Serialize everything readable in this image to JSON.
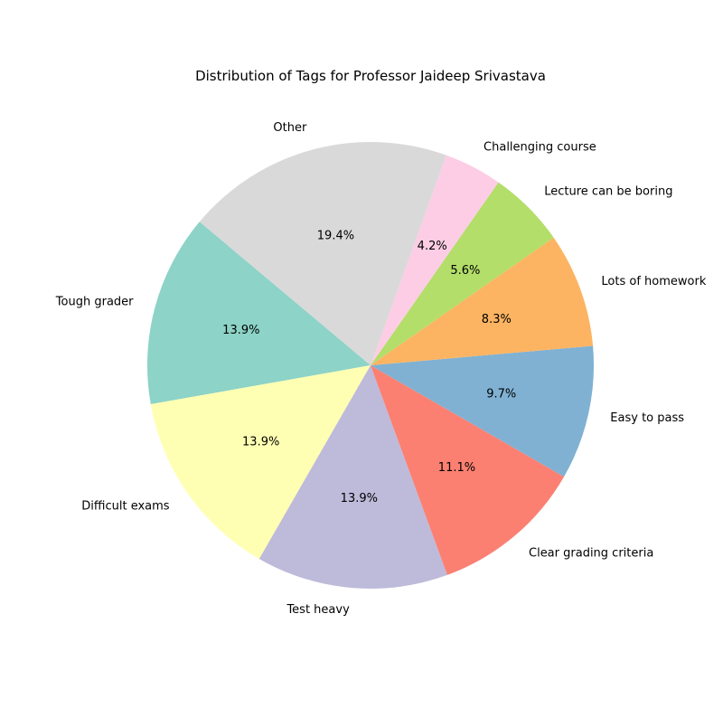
{
  "chart_data": {
    "type": "pie",
    "title": "Distribution of Tags for Professor Jaideep Srivastava",
    "start_angle_deg": 140,
    "direction": "counterclockwise",
    "slices": [
      {
        "label": "Tough grader",
        "value": 13.9,
        "pct_label": "13.9%",
        "color": "#8dd3c7"
      },
      {
        "label": "Difficult exams",
        "value": 13.9,
        "pct_label": "13.9%",
        "color": "#ffffb3"
      },
      {
        "label": "Test heavy",
        "value": 13.9,
        "pct_label": "13.9%",
        "color": "#bebada"
      },
      {
        "label": "Clear grading criteria",
        "value": 11.1,
        "pct_label": "11.1%",
        "color": "#fb8072"
      },
      {
        "label": "Easy to pass",
        "value": 9.7,
        "pct_label": "9.7%",
        "color": "#80b1d3"
      },
      {
        "label": "Lots of homework",
        "value": 8.3,
        "pct_label": "8.3%",
        "color": "#fdb462"
      },
      {
        "label": "Lecture can be boring",
        "value": 5.6,
        "pct_label": "5.6%",
        "color": "#b3de69"
      },
      {
        "label": "Challenging course",
        "value": 4.2,
        "pct_label": "4.2%",
        "color": "#fccde5"
      },
      {
        "label": "Other",
        "value": 19.4,
        "pct_label": "19.4%",
        "color": "#d9d9d9"
      }
    ]
  }
}
